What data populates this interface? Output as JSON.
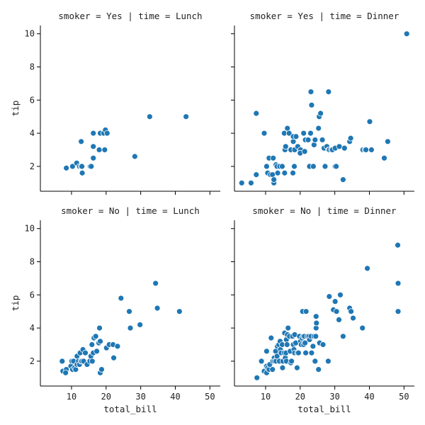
{
  "chart_data": {
    "type": "scatter",
    "marker_color": "#1f77b4",
    "x_label": "total_bill",
    "y_label": "tip",
    "xlim": [
      1,
      53
    ],
    "ylim": [
      0.5,
      10.5
    ],
    "x_ticks": [
      10,
      20,
      30,
      40,
      50
    ],
    "y_ticks": [
      2,
      4,
      6,
      8,
      10
    ],
    "grid": false,
    "panels": [
      {
        "title": "smoker = Yes | time = Lunch",
        "points": [
          [
            8.5,
            1.9
          ],
          [
            10.3,
            2.0
          ],
          [
            11.5,
            2.2
          ],
          [
            12.3,
            2.0
          ],
          [
            12.8,
            2.0
          ],
          [
            13.0,
            2.0
          ],
          [
            13.1,
            1.6
          ],
          [
            12.8,
            3.5
          ],
          [
            15.4,
            2.0
          ],
          [
            15.7,
            2.0
          ],
          [
            16.3,
            2.5
          ],
          [
            16.3,
            3.2
          ],
          [
            16.3,
            4.0
          ],
          [
            18.0,
            3.0
          ],
          [
            18.3,
            4.0
          ],
          [
            19.3,
            4.0
          ],
          [
            19.6,
            3.0
          ],
          [
            19.8,
            4.2
          ],
          [
            20.3,
            4.0
          ],
          [
            28.3,
            2.6
          ],
          [
            32.6,
            5.0
          ],
          [
            43.1,
            5.0
          ]
        ]
      },
      {
        "title": "smoker = Yes | time = Dinner",
        "points": [
          [
            3.1,
            1.0
          ],
          [
            5.8,
            1.0
          ],
          [
            7.3,
            1.5
          ],
          [
            7.3,
            5.2
          ],
          [
            9.6,
            4.0
          ],
          [
            10.3,
            2.0
          ],
          [
            10.6,
            1.6
          ],
          [
            11.0,
            2.5
          ],
          [
            11.4,
            1.5
          ],
          [
            12.2,
            2.5
          ],
          [
            12.0,
            1.5
          ],
          [
            12.4,
            1.0
          ],
          [
            12.4,
            1.2
          ],
          [
            13.0,
            2.1
          ],
          [
            13.3,
            2.0
          ],
          [
            13.5,
            1.6
          ],
          [
            14.1,
            2.0
          ],
          [
            14.8,
            2.0
          ],
          [
            15.4,
            1.6
          ],
          [
            15.5,
            1.6
          ],
          [
            15.6,
            3.0
          ],
          [
            15.4,
            4.0
          ],
          [
            15.8,
            3.2
          ],
          [
            16.3,
            4.3
          ],
          [
            16.8,
            4.0
          ],
          [
            17.3,
            3.0
          ],
          [
            18.0,
            3.5
          ],
          [
            18.4,
            3.0
          ],
          [
            17.9,
            1.6
          ],
          [
            18.3,
            2.0
          ],
          [
            18.0,
            3.8
          ],
          [
            18.8,
            3.8
          ],
          [
            19.3,
            3.2
          ],
          [
            20.1,
            3.0
          ],
          [
            20.0,
            2.8
          ],
          [
            21.0,
            4.0
          ],
          [
            21.3,
            2.9
          ],
          [
            21.5,
            3.6
          ],
          [
            22.3,
            3.6
          ],
          [
            22.7,
            2.0
          ],
          [
            23.0,
            4.0
          ],
          [
            23.1,
            6.5
          ],
          [
            23.3,
            5.7
          ],
          [
            23.8,
            2.0
          ],
          [
            24.0,
            3.3
          ],
          [
            24.3,
            3.6
          ],
          [
            25.3,
            4.3
          ],
          [
            25.5,
            5.0
          ],
          [
            25.9,
            5.2
          ],
          [
            26.4,
            3.6
          ],
          [
            26.9,
            3.1
          ],
          [
            27.2,
            2.0
          ],
          [
            27.7,
            3.2
          ],
          [
            28.2,
            6.5
          ],
          [
            28.2,
            3.0
          ],
          [
            28.4,
            3.0
          ],
          [
            29.0,
            3.0
          ],
          [
            29.3,
            3.0
          ],
          [
            30.1,
            2.0
          ],
          [
            30.1,
            3.1
          ],
          [
            30.4,
            2.0
          ],
          [
            31.3,
            3.2
          ],
          [
            32.4,
            1.2
          ],
          [
            32.8,
            3.1
          ],
          [
            34.3,
            3.5
          ],
          [
            34.6,
            3.7
          ],
          [
            38.1,
            3.0
          ],
          [
            38.7,
            3.0
          ],
          [
            39.0,
            3.0
          ],
          [
            40.1,
            4.7
          ],
          [
            40.6,
            3.0
          ],
          [
            44.3,
            2.5
          ],
          [
            45.3,
            3.5
          ],
          [
            50.8,
            10.0
          ]
        ]
      },
      {
        "title": "smoker = No | time = Lunch",
        "points": [
          [
            7.3,
            2.0
          ],
          [
            7.5,
            1.4
          ],
          [
            8.5,
            1.5
          ],
          [
            8.3,
            1.3
          ],
          [
            9.8,
            1.7
          ],
          [
            10.1,
            2.0
          ],
          [
            10.3,
            1.5
          ],
          [
            10.6,
            2.0
          ],
          [
            10.9,
            1.6
          ],
          [
            11.2,
            1.5
          ],
          [
            11.6,
            1.8
          ],
          [
            11.6,
            2.3
          ],
          [
            12.0,
            2.0
          ],
          [
            12.3,
            1.8
          ],
          [
            12.5,
            2.5
          ],
          [
            12.7,
            2.0
          ],
          [
            13.0,
            2.0
          ],
          [
            13.3,
            2.7
          ],
          [
            13.5,
            2.0
          ],
          [
            14.0,
            2.5
          ],
          [
            14.5,
            1.8
          ],
          [
            15.3,
            2.0
          ],
          [
            15.6,
            2.3
          ],
          [
            15.9,
            3.0
          ],
          [
            16.0,
            2.0
          ],
          [
            16.3,
            2.5
          ],
          [
            16.5,
            3.4
          ],
          [
            17.0,
            3.5
          ],
          [
            17.3,
            2.6
          ],
          [
            17.9,
            3.1
          ],
          [
            18.1,
            4.0
          ],
          [
            18.3,
            3.2
          ],
          [
            18.3,
            1.3
          ],
          [
            18.7,
            1.5
          ],
          [
            20.1,
            2.8
          ],
          [
            20.9,
            3.0
          ],
          [
            22.0,
            3.0
          ],
          [
            22.2,
            2.2
          ],
          [
            23.3,
            2.9
          ],
          [
            24.3,
            5.8
          ],
          [
            26.7,
            5.0
          ],
          [
            27.0,
            4.0
          ],
          [
            29.8,
            4.2
          ],
          [
            34.3,
            6.7
          ],
          [
            34.8,
            5.2
          ],
          [
            41.2,
            5.0
          ]
        ]
      },
      {
        "title": "smoker = No | time = Dinner",
        "points": [
          [
            7.5,
            1.0
          ],
          [
            8.8,
            2.0
          ],
          [
            9.6,
            1.4
          ],
          [
            10.1,
            1.7
          ],
          [
            10.3,
            1.7
          ],
          [
            10.3,
            1.3
          ],
          [
            10.6,
            1.6
          ],
          [
            10.3,
            2.6
          ],
          [
            11.0,
            1.5
          ],
          [
            11.2,
            1.8
          ],
          [
            11.6,
            3.4
          ],
          [
            12.0,
            1.5
          ],
          [
            12.1,
            2.0
          ],
          [
            12.5,
            2.2
          ],
          [
            12.6,
            2.0
          ],
          [
            12.9,
            2.6
          ],
          [
            13.0,
            2.0
          ],
          [
            13.3,
            2.3
          ],
          [
            13.4,
            2.9
          ],
          [
            13.8,
            3.0
          ],
          [
            14.0,
            2.0
          ],
          [
            14.2,
            3.2
          ],
          [
            14.3,
            2.7
          ],
          [
            14.5,
            2.5
          ],
          [
            14.8,
            3.0
          ],
          [
            14.9,
            1.6
          ],
          [
            15.0,
            2.0
          ],
          [
            15.4,
            2.5
          ],
          [
            15.5,
            3.7
          ],
          [
            15.7,
            2.2
          ],
          [
            15.9,
            2.5
          ],
          [
            16.0,
            2.0
          ],
          [
            16.0,
            3.3
          ],
          [
            16.2,
            3.0
          ],
          [
            16.3,
            3.6
          ],
          [
            16.5,
            4.0
          ],
          [
            16.9,
            3.5
          ],
          [
            17.1,
            2.6
          ],
          [
            17.3,
            1.9
          ],
          [
            17.5,
            2.0
          ],
          [
            17.8,
            3.5
          ],
          [
            18.0,
            3.0
          ],
          [
            18.2,
            2.7
          ],
          [
            18.4,
            2.5
          ],
          [
            18.4,
            3.6
          ],
          [
            18.7,
            3.1
          ],
          [
            19.1,
            1.6
          ],
          [
            19.2,
            2.5
          ],
          [
            19.5,
            2.5
          ],
          [
            19.8,
            3.5
          ],
          [
            20.1,
            3.2
          ],
          [
            20.3,
            3.0
          ],
          [
            20.5,
            3.4
          ],
          [
            20.7,
            5.0
          ],
          [
            20.9,
            3.5
          ],
          [
            21.0,
            3.0
          ],
          [
            21.2,
            3.5
          ],
          [
            21.4,
            3.1
          ],
          [
            21.6,
            2.5
          ],
          [
            21.7,
            5.0
          ],
          [
            22.1,
            3.5
          ],
          [
            22.5,
            3.5
          ],
          [
            22.7,
            3.3
          ],
          [
            23.1,
            3.5
          ],
          [
            23.3,
            2.5
          ],
          [
            23.7,
            2.9
          ],
          [
            24.0,
            3.5
          ],
          [
            24.3,
            2.0
          ],
          [
            24.5,
            3.5
          ],
          [
            24.6,
            4.0
          ],
          [
            24.6,
            4.7
          ],
          [
            24.7,
            4.3
          ],
          [
            25.3,
            1.5
          ],
          [
            25.6,
            3.1
          ],
          [
            26.6,
            3.0
          ],
          [
            28.1,
            2.0
          ],
          [
            28.4,
            5.9
          ],
          [
            29.6,
            5.1
          ],
          [
            30.1,
            5.6
          ],
          [
            30.5,
            5.0
          ],
          [
            31.2,
            4.5
          ],
          [
            31.6,
            6.0
          ],
          [
            32.4,
            3.5
          ],
          [
            34.3,
            5.2
          ],
          [
            34.7,
            5.0
          ],
          [
            35.3,
            4.6
          ],
          [
            38.0,
            4.0
          ],
          [
            39.4,
            7.6
          ],
          [
            48.2,
            9.0
          ],
          [
            48.3,
            6.7
          ],
          [
            48.3,
            5.0
          ]
        ]
      }
    ]
  }
}
